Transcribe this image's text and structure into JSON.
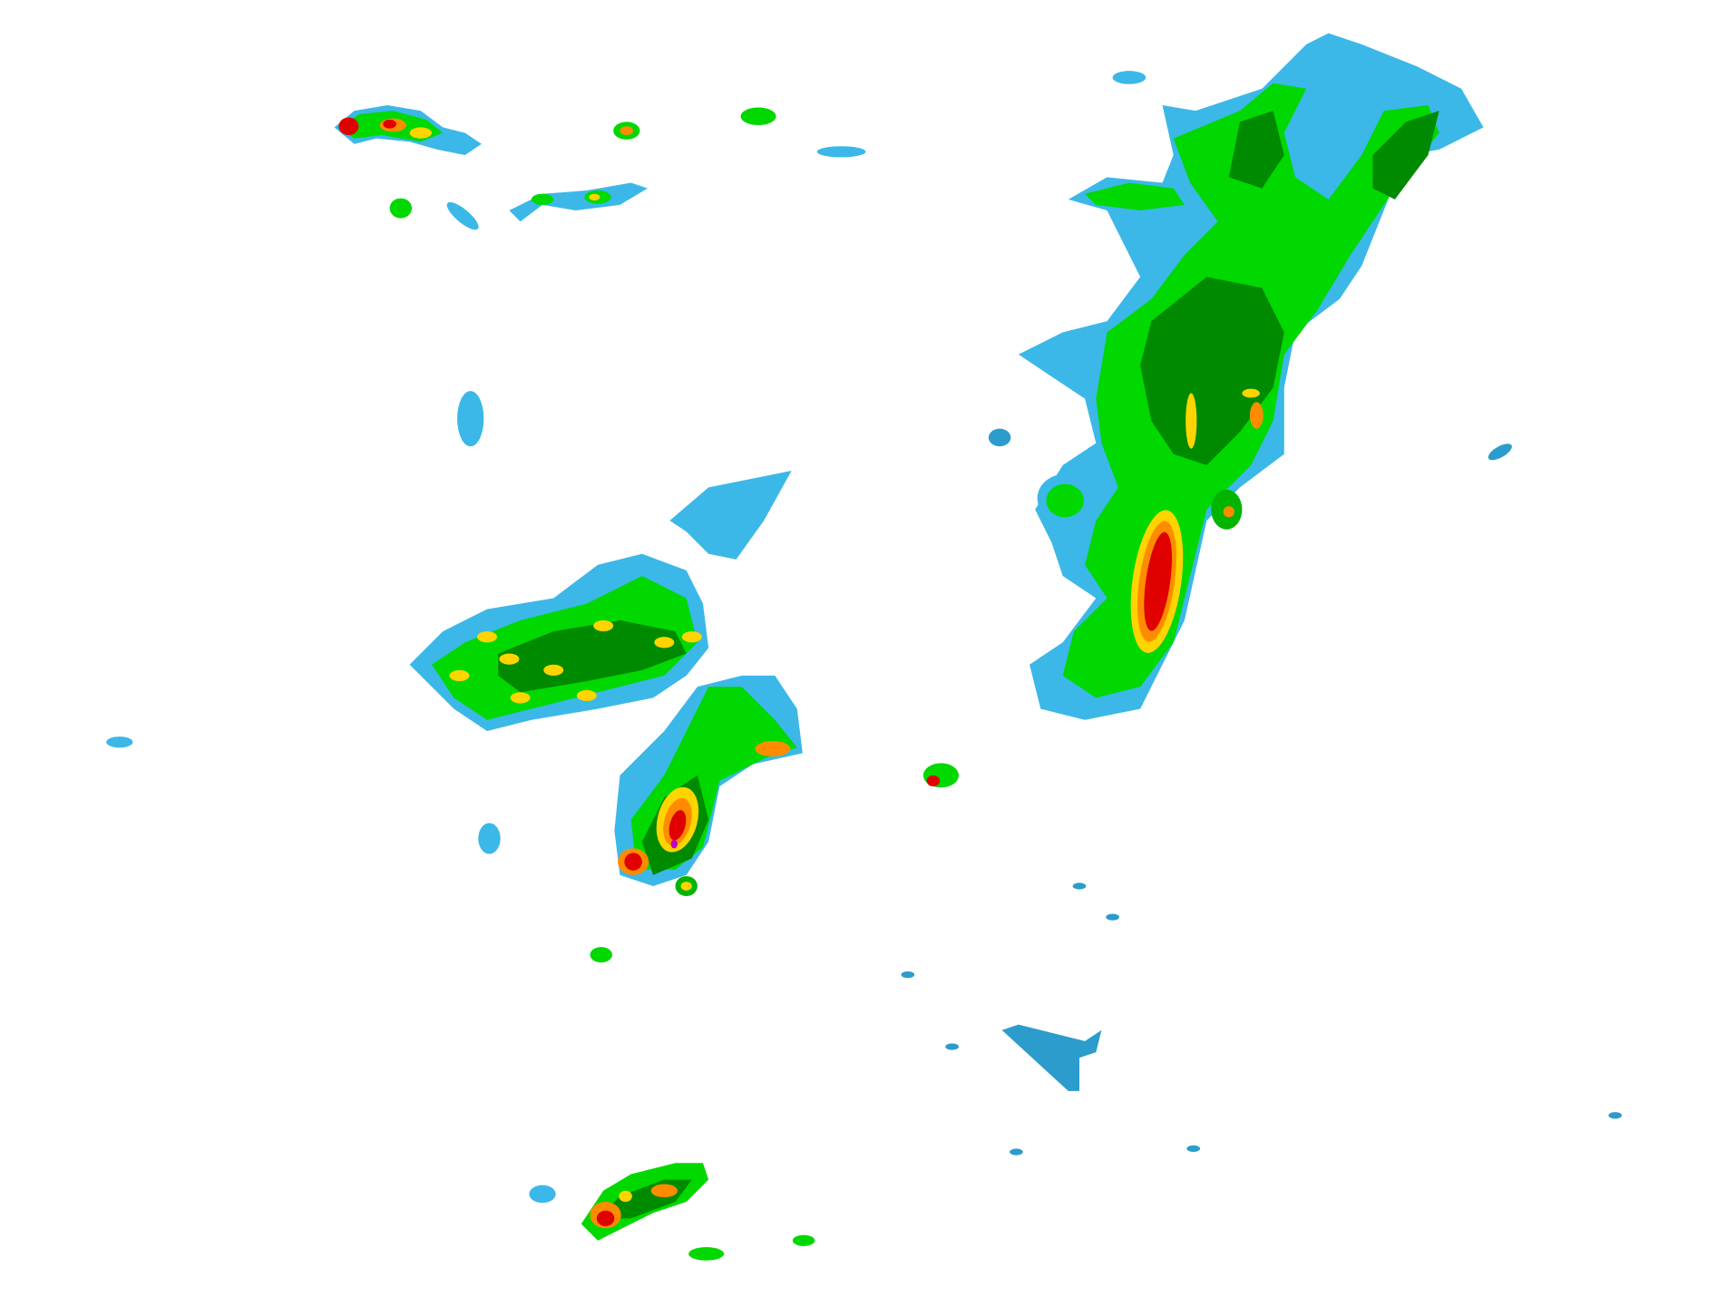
{
  "map": {
    "kind": "weather-radar-reflectivity",
    "background": "#ffffff",
    "palette": {
      "light_blue": "#3bb8e8",
      "blue": "#2b9ccc",
      "light_green": "#00d800",
      "green": "#00b400",
      "dark_green": "#008a00",
      "yellow": "#ffd400",
      "orange": "#ff8c00",
      "red": "#e00000",
      "dark_red": "#b00000",
      "magenta": "#c000c0"
    }
  }
}
